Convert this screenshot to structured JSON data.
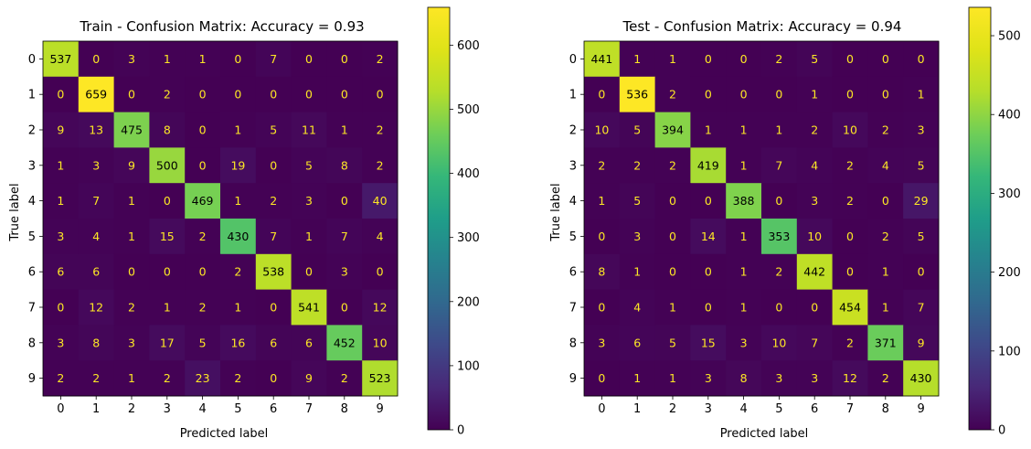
{
  "chart_data": [
    {
      "type": "heatmap",
      "title": "Train - Confusion Matrix: Accuracy = 0.93",
      "xlabel": "Predicted label",
      "ylabel": "True label",
      "x_categories": [
        "0",
        "1",
        "2",
        "3",
        "4",
        "5",
        "6",
        "7",
        "8",
        "9"
      ],
      "y_categories": [
        "0",
        "1",
        "2",
        "3",
        "4",
        "5",
        "6",
        "7",
        "8",
        "9"
      ],
      "colormap": "viridis",
      "vmin": 0,
      "vmax": 659,
      "colorbar_ticks": [
        0,
        100,
        200,
        300,
        400,
        500,
        600
      ],
      "values": [
        [
          537,
          0,
          3,
          1,
          1,
          0,
          7,
          0,
          0,
          2
        ],
        [
          0,
          659,
          0,
          2,
          0,
          0,
          0,
          0,
          0,
          0
        ],
        [
          9,
          13,
          475,
          8,
          0,
          1,
          5,
          11,
          1,
          2
        ],
        [
          1,
          3,
          9,
          500,
          0,
          19,
          0,
          5,
          8,
          2
        ],
        [
          1,
          7,
          1,
          0,
          469,
          1,
          2,
          3,
          0,
          40
        ],
        [
          3,
          4,
          1,
          15,
          2,
          430,
          7,
          1,
          7,
          4
        ],
        [
          6,
          6,
          0,
          0,
          0,
          2,
          538,
          0,
          3,
          0
        ],
        [
          0,
          12,
          2,
          1,
          2,
          1,
          0,
          541,
          0,
          12
        ],
        [
          3,
          8,
          3,
          17,
          5,
          16,
          6,
          6,
          452,
          10
        ],
        [
          2,
          2,
          1,
          2,
          23,
          2,
          0,
          9,
          2,
          523
        ]
      ]
    },
    {
      "type": "heatmap",
      "title": "Test - Confusion Matrix: Accuracy = 0.94",
      "xlabel": "Predicted label",
      "ylabel": "True label",
      "x_categories": [
        "0",
        "1",
        "2",
        "3",
        "4",
        "5",
        "6",
        "7",
        "8",
        "9"
      ],
      "y_categories": [
        "0",
        "1",
        "2",
        "3",
        "4",
        "5",
        "6",
        "7",
        "8",
        "9"
      ],
      "colormap": "viridis",
      "vmin": 0,
      "vmax": 536,
      "colorbar_ticks": [
        0,
        100,
        200,
        300,
        400,
        500
      ],
      "values": [
        [
          441,
          1,
          1,
          0,
          0,
          2,
          5,
          0,
          0,
          0
        ],
        [
          0,
          536,
          2,
          0,
          0,
          0,
          1,
          0,
          0,
          1
        ],
        [
          10,
          5,
          394,
          1,
          1,
          1,
          2,
          10,
          2,
          3
        ],
        [
          2,
          2,
          2,
          419,
          1,
          7,
          4,
          2,
          4,
          5
        ],
        [
          1,
          5,
          0,
          0,
          388,
          0,
          3,
          2,
          0,
          29
        ],
        [
          0,
          3,
          0,
          14,
          1,
          353,
          10,
          0,
          2,
          5
        ],
        [
          8,
          1,
          0,
          0,
          1,
          2,
          442,
          0,
          1,
          0
        ],
        [
          0,
          4,
          1,
          0,
          1,
          0,
          0,
          454,
          1,
          7
        ],
        [
          3,
          6,
          5,
          15,
          3,
          10,
          7,
          2,
          371,
          9
        ],
        [
          0,
          1,
          1,
          3,
          8,
          3,
          3,
          12,
          2,
          430
        ]
      ]
    }
  ]
}
